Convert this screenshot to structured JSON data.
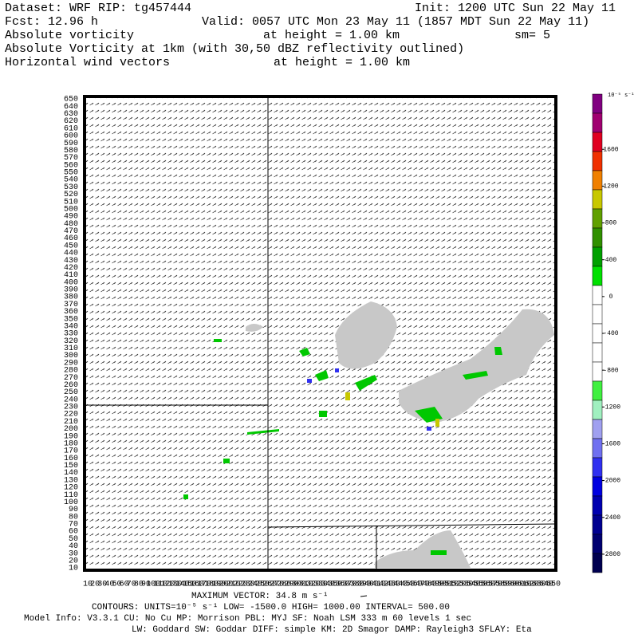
{
  "header": {
    "dataset": "Dataset: WRF  RIP: tg457444",
    "init": "Init: 1200 UTC Sun 22 May 11",
    "fcst": "Fcst:   12.96 h",
    "valid": "Valid: 0057 UTC Mon 23 May 11 (1857 MDT Sun 22 May 11)",
    "field1": "Absolute vorticity",
    "field1_height": "at height =  1.00 km",
    "sm": "sm= 5",
    "field2": "Absolute Vorticity at 1km (with 30,50 dBZ reflectivity outlined)",
    "field3": "Horizontal wind vectors",
    "field3_height": "at height =   1.00 km"
  },
  "map": {
    "xlim": [
      10,
      650
    ],
    "ylim": [
      10,
      650
    ],
    "xticks": [
      10,
      20,
      30,
      40,
      50,
      60,
      70,
      80,
      90,
      100,
      110,
      120,
      130,
      140,
      150,
      160,
      170,
      180,
      190,
      200,
      210,
      220,
      230,
      240,
      250,
      260,
      270,
      280,
      290,
      300,
      310,
      320,
      330,
      340,
      350,
      360,
      370,
      380,
      390,
      400,
      410,
      420,
      430,
      440,
      450,
      460,
      470,
      480,
      490,
      500,
      510,
      520,
      530,
      540,
      550,
      560,
      570,
      580,
      590,
      600,
      610,
      620,
      630,
      640,
      650
    ],
    "yticks": [
      10,
      20,
      30,
      40,
      50,
      60,
      70,
      80,
      90,
      100,
      110,
      120,
      130,
      140,
      150,
      160,
      170,
      180,
      190,
      200,
      210,
      220,
      230,
      240,
      250,
      260,
      270,
      280,
      290,
      300,
      310,
      320,
      330,
      340,
      350,
      360,
      370,
      380,
      390,
      400,
      410,
      420,
      430,
      440,
      450,
      460,
      470,
      480,
      490,
      500,
      510,
      520,
      530,
      540,
      550,
      560,
      570,
      580,
      590,
      600,
      610,
      620,
      630,
      640,
      650
    ]
  },
  "colorbar": {
    "units": "10⁻⁵ s⁻¹",
    "clim": [
      -3000,
      2200
    ],
    "colors": [
      "#800080",
      "#a00070",
      "#e00020",
      "#f03000",
      "#f08000",
      "#c8c800",
      "#60a000",
      "#309000",
      "#00a000",
      "#00e000",
      "#ffffff",
      "#ffffff",
      "#ffffff",
      "#ffffff",
      "#ffffff",
      "#40f040",
      "#a0f0c0",
      "#a0a0f0",
      "#7070f0",
      "#3030f0",
      "#0000e0",
      "#0000b0",
      "#000090",
      "#000070",
      "#000050"
    ],
    "ticks": [
      1600,
      1200,
      800,
      400,
      0,
      -400,
      -800,
      -1200,
      -1600,
      -2000,
      -2400,
      -2800
    ]
  },
  "footer": {
    "max_vector": "MAXIMUM VECTOR:  34.8 m s⁻¹",
    "contours": "CONTOURS:  UNITS=10⁻⁵ s⁻¹  LOW= -1500.0        HIGH= 1000.00        INTERVAL=    500.00",
    "model_info": "Model Info: V3.3.1    CU: No Cu    MP: Morrison     PBL: MYJ      SF: Noah LSM     333 m    60 levels     1 sec",
    "physics": "LW: Goddard  SW: Goddar DIFF: simple KM: 2D Smagor DAMP: Rayleigh3   SFLAY: Eta"
  }
}
